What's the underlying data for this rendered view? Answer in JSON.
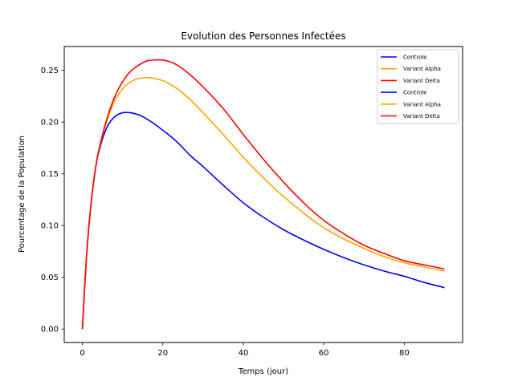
{
  "colors": {
    "controle": "#0000ff",
    "alpha": "#ffa500",
    "delta": "#ff0000",
    "background": "#ffffff",
    "axes": "#000000",
    "legend_border": "#cccccc"
  },
  "chart_data": {
    "type": "line",
    "title": "Evolution des Personnes Infectées",
    "xlabel": "Temps (jour)",
    "ylabel": "Pourcentage de la Population",
    "xlim": [
      -4.5,
      94.5
    ],
    "ylim": [
      -0.013,
      0.273
    ],
    "xticks": [
      0,
      20,
      40,
      60,
      80
    ],
    "xtick_labels": [
      "0",
      "20",
      "40",
      "60",
      "80"
    ],
    "yticks": [
      0.0,
      0.05,
      0.1,
      0.15,
      0.2,
      0.25
    ],
    "ytick_labels": [
      "0.00",
      "0.05",
      "0.10",
      "0.15",
      "0.20",
      "0.25"
    ],
    "grid": false,
    "legend_position": "top-right",
    "x": [
      0,
      1,
      2,
      3,
      4,
      6,
      8,
      10,
      12,
      14,
      16,
      18,
      20,
      22,
      24,
      27,
      30,
      35,
      40,
      45,
      50,
      55,
      60,
      65,
      70,
      75,
      80,
      85,
      90
    ],
    "series": [
      {
        "name": "Controle",
        "color": "#0000ff",
        "values": [
          0.0,
          0.068,
          0.115,
          0.148,
          0.17,
          0.194,
          0.205,
          0.209,
          0.209,
          0.207,
          0.203,
          0.198,
          0.192,
          0.186,
          0.179,
          0.167,
          0.157,
          0.139,
          0.122,
          0.108,
          0.096,
          0.086,
          0.077,
          0.069,
          0.062,
          0.056,
          0.051,
          0.045,
          0.04
        ]
      },
      {
        "name": "Variant Alpha",
        "color": "#ffa500",
        "values": [
          0.0,
          0.068,
          0.115,
          0.148,
          0.171,
          0.2,
          0.22,
          0.232,
          0.239,
          0.242,
          0.243,
          0.242,
          0.24,
          0.236,
          0.231,
          0.221,
          0.209,
          0.188,
          0.166,
          0.146,
          0.128,
          0.112,
          0.098,
          0.087,
          0.078,
          0.07,
          0.064,
          0.06,
          0.056
        ]
      },
      {
        "name": "Variant Delta",
        "color": "#ff0000",
        "values": [
          0.0,
          0.068,
          0.115,
          0.148,
          0.171,
          0.202,
          0.224,
          0.239,
          0.249,
          0.255,
          0.259,
          0.26,
          0.26,
          0.258,
          0.254,
          0.245,
          0.234,
          0.213,
          0.188,
          0.164,
          0.142,
          0.122,
          0.105,
          0.092,
          0.081,
          0.073,
          0.066,
          0.062,
          0.058
        ]
      }
    ],
    "legend_entries": [
      {
        "name": "Controle",
        "color": "#0000ff"
      },
      {
        "name": "Variant Alpha",
        "color": "#ffa500"
      },
      {
        "name": "Variant Delta",
        "color": "#ff0000"
      },
      {
        "name": "Controle",
        "color": "#0000ff"
      },
      {
        "name": "Variant Alpha",
        "color": "#ffa500"
      },
      {
        "name": "Variant Delta",
        "color": "#ff0000"
      }
    ]
  }
}
